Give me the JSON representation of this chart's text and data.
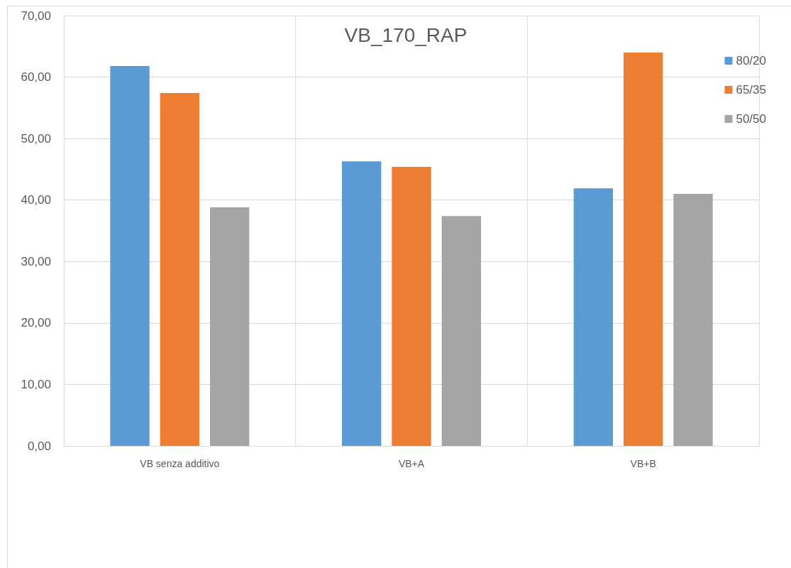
{
  "chart_data": {
    "type": "bar",
    "title": "VB_170_RAP",
    "categories": [
      "VB senza additivo",
      "VB+A",
      "VB+B"
    ],
    "series": [
      {
        "name": "80/20",
        "color": "#5b9bd5",
        "values": [
          61.8,
          46.3,
          41.9
        ]
      },
      {
        "name": "65/35",
        "color": "#ed7d31",
        "values": [
          57.4,
          45.4,
          64.0
        ]
      },
      {
        "name": "50/50",
        "color": "#a5a5a5",
        "values": [
          38.8,
          37.4,
          41.0
        ]
      }
    ],
    "ylim": [
      0,
      70
    ],
    "yticks": [
      {
        "value": 0,
        "label": "0,00"
      },
      {
        "value": 10,
        "label": "10,00"
      },
      {
        "value": 20,
        "label": "20,00"
      },
      {
        "value": 30,
        "label": "30,00"
      },
      {
        "value": 40,
        "label": "40,00"
      },
      {
        "value": 50,
        "label": "50,00"
      },
      {
        "value": 60,
        "label": "60,00"
      },
      {
        "value": 70,
        "label": "70,00"
      }
    ],
    "grid": true,
    "legend": "top right"
  }
}
